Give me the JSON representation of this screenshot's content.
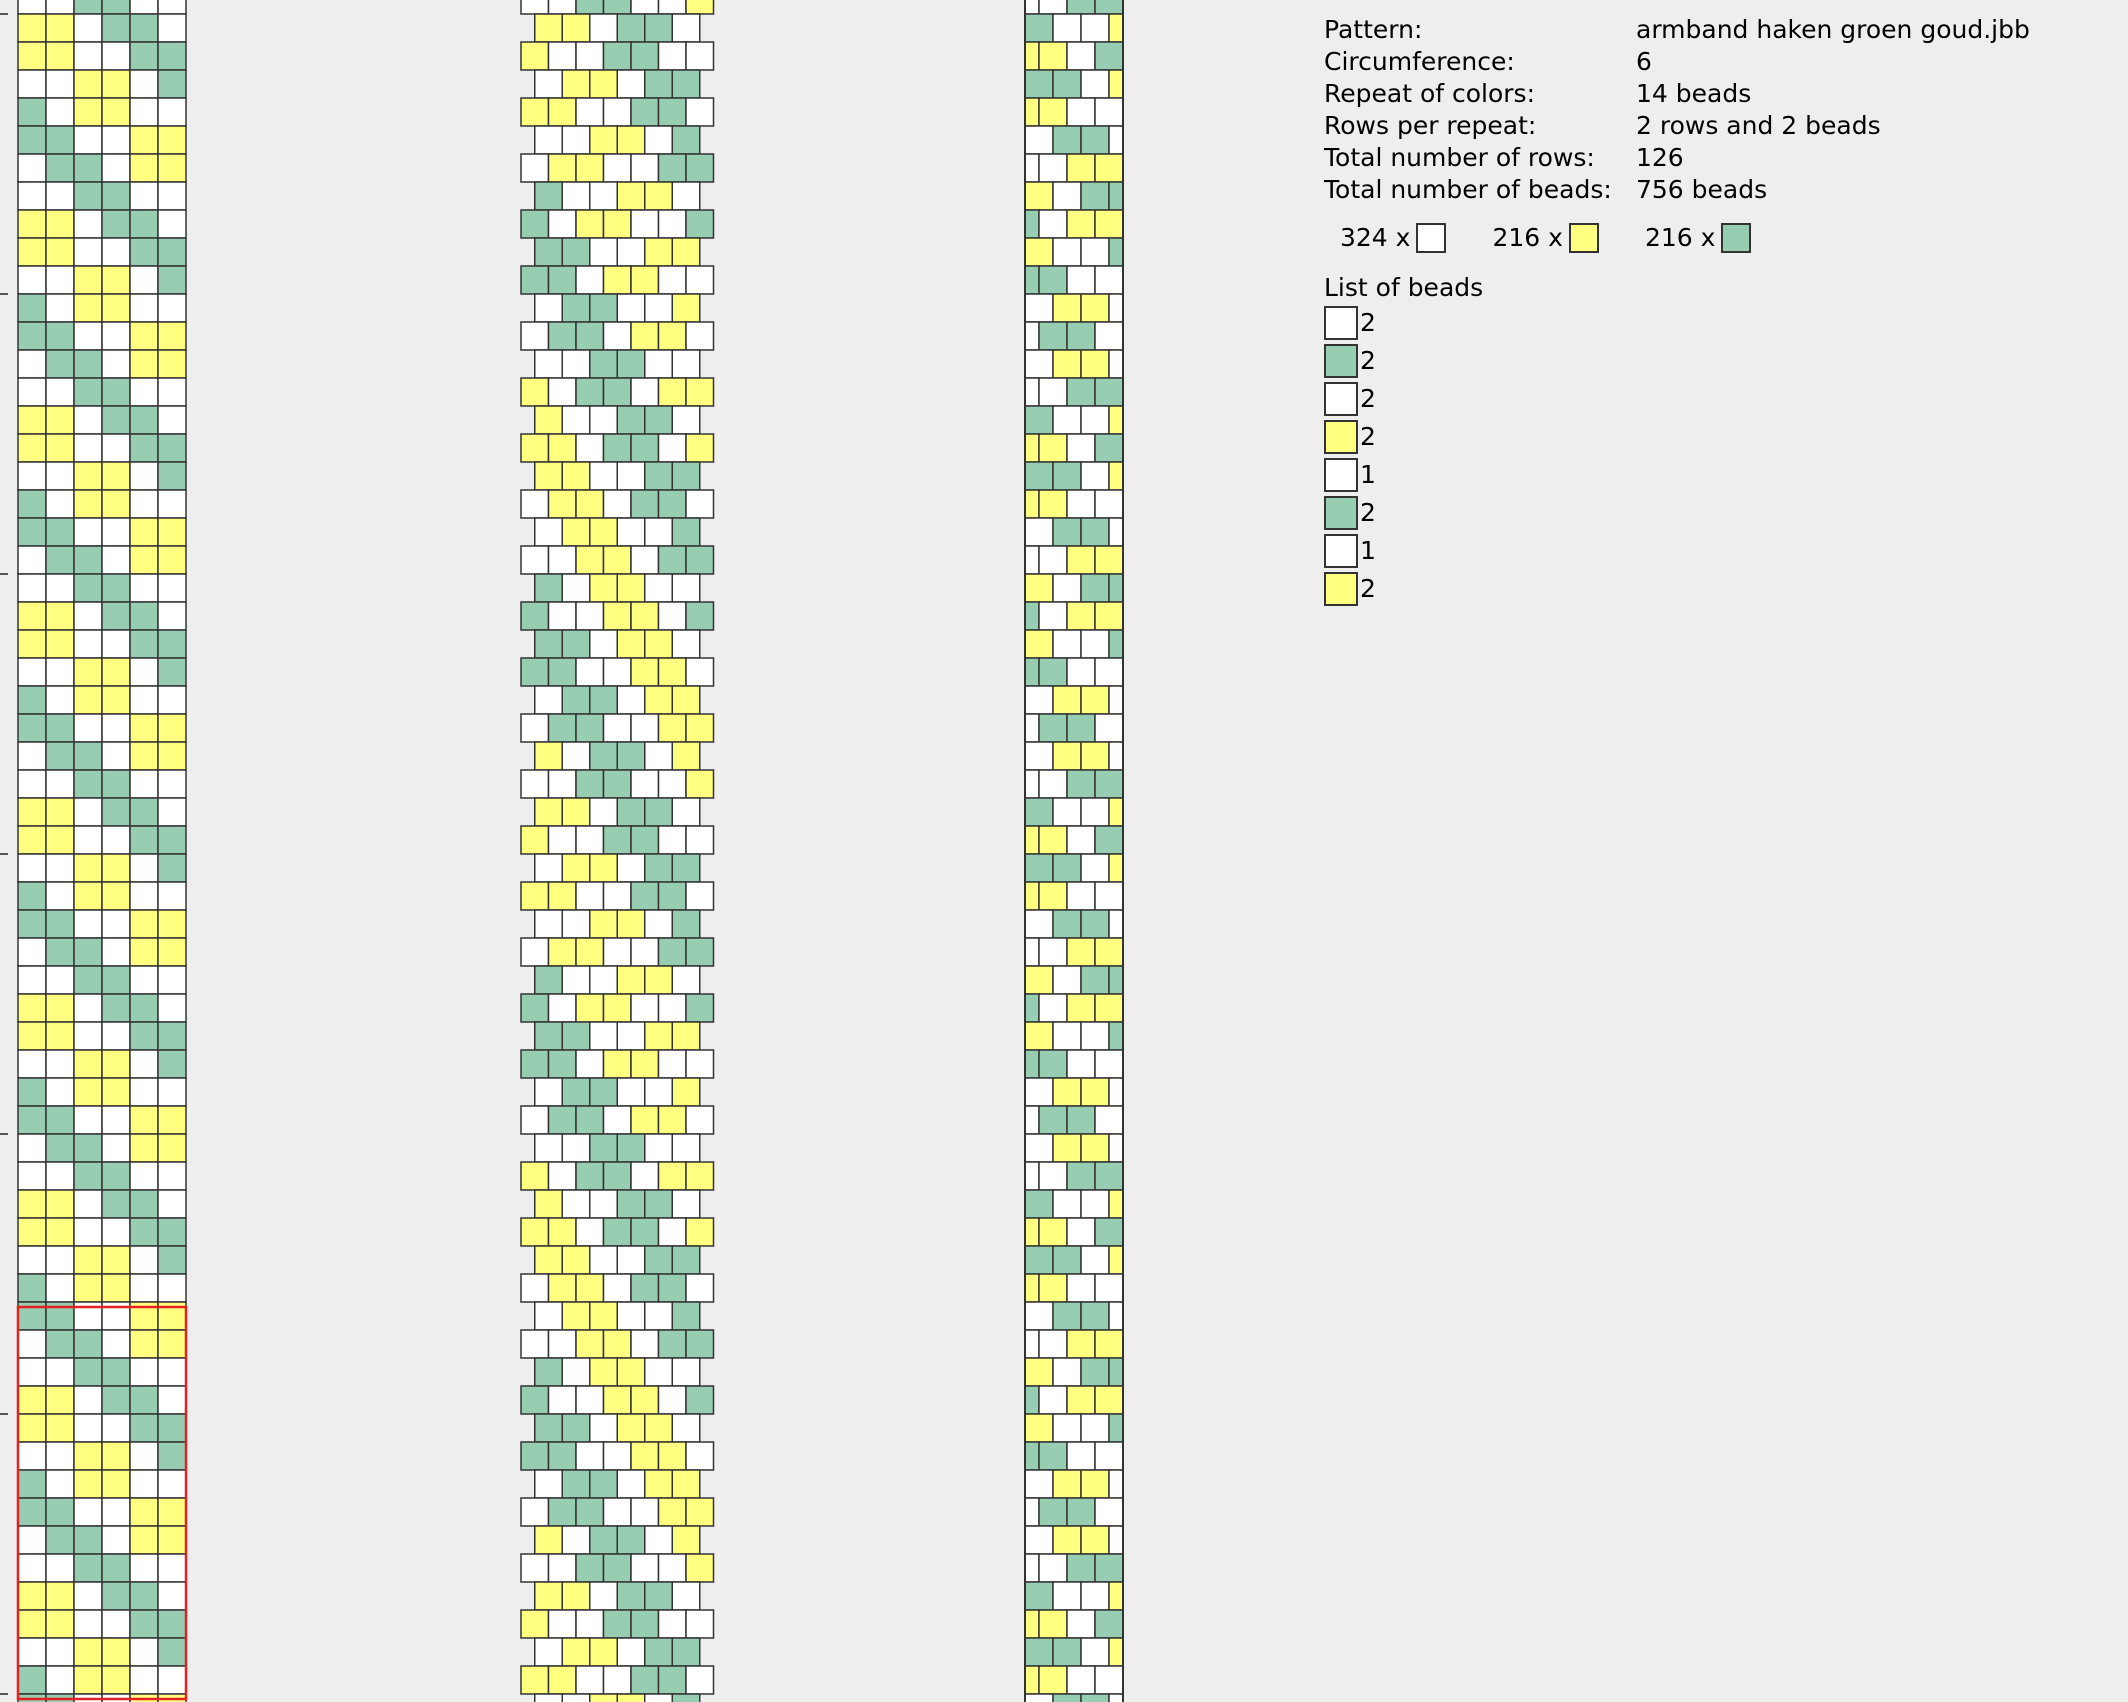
{
  "colors": {
    "white": "#ffffff",
    "yellow": "#ffff80",
    "green": "#97cdb0",
    "outline": "#333333",
    "marker": "#e22222",
    "background": "#eeeeee"
  },
  "info": {
    "rows": [
      {
        "label": "Pattern:",
        "value": "armband haken groen goud.jbb"
      },
      {
        "label": "Circumference:",
        "value": "6"
      },
      {
        "label": "Repeat of colors:",
        "value": "14 beads"
      },
      {
        "label": "Rows per repeat:",
        "value": "2 rows and 2 beads"
      },
      {
        "label": "Total number of rows:",
        "value": "126"
      },
      {
        "label": "Total number of beads:",
        "value": "756 beads"
      }
    ],
    "counts": [
      {
        "text": "324 x",
        "color": "white"
      },
      {
        "text": "216 x",
        "color": "yellow"
      },
      {
        "text": "216 x",
        "color": "green"
      }
    ],
    "list_title": "List of beads",
    "list": [
      {
        "color": "white",
        "count": "2"
      },
      {
        "color": "green",
        "count": "2"
      },
      {
        "color": "white",
        "count": "2"
      },
      {
        "color": "yellow",
        "count": "2"
      },
      {
        "color": "white",
        "count": "1"
      },
      {
        "color": "green",
        "count": "2"
      },
      {
        "color": "white",
        "count": "1"
      },
      {
        "color": "yellow",
        "count": "2"
      }
    ]
  },
  "pattern_repeat": [
    "white",
    "white",
    "green",
    "green",
    "white",
    "white",
    "yellow",
    "yellow",
    "white",
    "green",
    "green",
    "white",
    "yellow",
    "yellow"
  ],
  "circumference": 6
}
